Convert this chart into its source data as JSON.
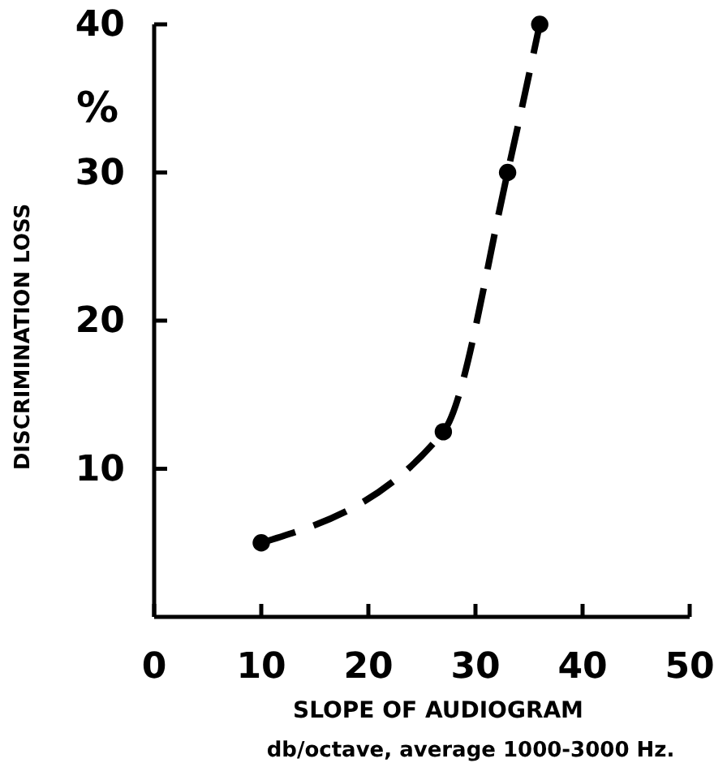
{
  "chart_data": {
    "type": "line",
    "ylabel": "DISCRIMINATION LOSS",
    "xlabel": "SLOPE OF AUDIOGRAM\ndb/octave, average 1000-3000 Hz.",
    "annotations": [
      "%"
    ],
    "x": [
      10,
      27,
      33,
      36
    ],
    "series": [
      {
        "color": "#000000",
        "values": [
          5,
          12.5,
          30,
          40
        ]
      }
    ],
    "xlim": [
      0,
      50
    ],
    "xticks": [
      0,
      10,
      20,
      30,
      40,
      50
    ],
    "ylim": [
      0,
      40
    ],
    "yticks": [
      10,
      20,
      30,
      40
    ],
    "grid": false,
    "marker": "circle",
    "line_style": "dashed"
  }
}
